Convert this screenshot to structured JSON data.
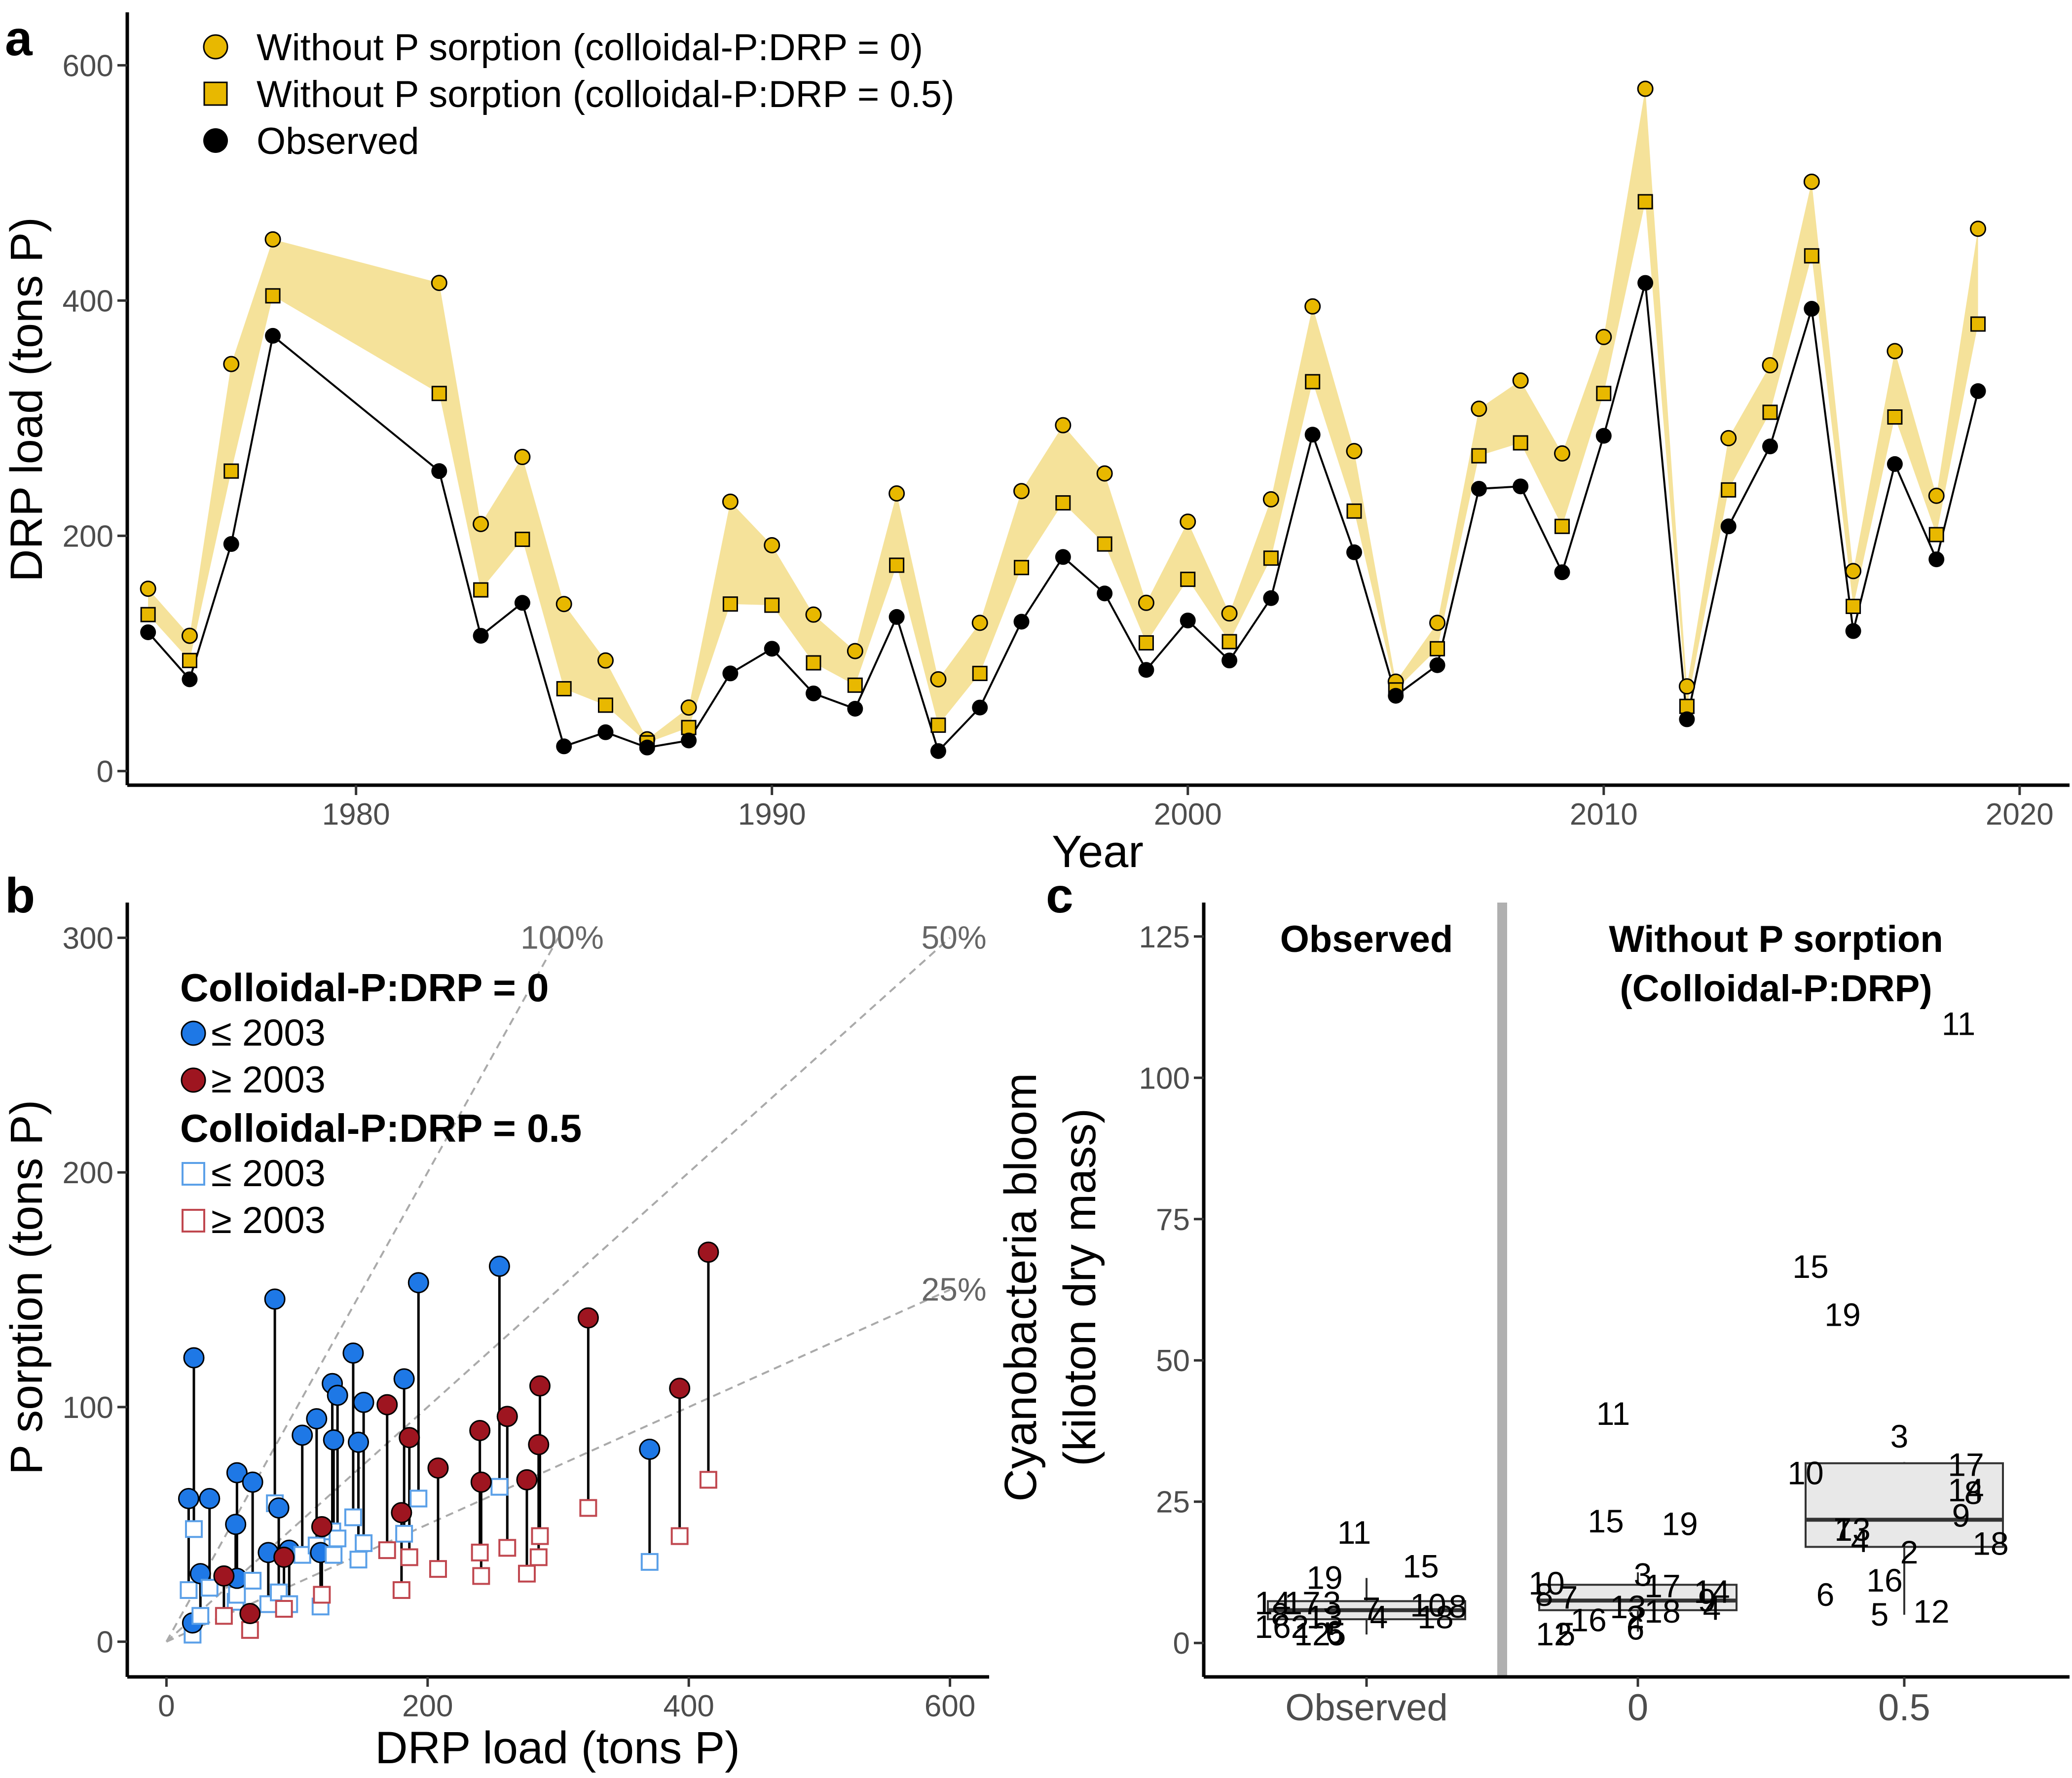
{
  "panels": {
    "a": "a",
    "b": "b",
    "c": "c"
  },
  "colors": {
    "gold": "#E8B800",
    "band": "#F5E29A",
    "observed": "#000000",
    "blue": "#1E78E6",
    "red": "#9E1520",
    "lightblue": "#5BA0E8",
    "lightred": "#C0474F",
    "guide": "#AAAAAA",
    "box_fill": "#E8E8E8",
    "divider": "#B0B0B0"
  },
  "chart_data": [
    {
      "id": "a",
      "type": "line",
      "xlabel": "Year",
      "ylabel": "DRP load (tons P)",
      "xlim": [
        1974.5,
        2021.2
      ],
      "ylim": [
        -12,
        645
      ],
      "xticks": [
        1980,
        1990,
        2000,
        2010,
        2020
      ],
      "yticks": [
        0,
        200,
        400,
        600
      ],
      "legend_position": "top-left",
      "legend": [
        {
          "marker": "circle",
          "label": "Without P sorption (colloidal-P:DRP = 0)"
        },
        {
          "marker": "square",
          "label": "Without P sorption (colloidal-P:DRP = 0.5)"
        },
        {
          "marker": "dot",
          "label": "Observed"
        }
      ],
      "x": [
        1975,
        1976,
        1977,
        1978,
        1982,
        1983,
        1984,
        1985,
        1986,
        1987,
        1988,
        1989,
        1990,
        1991,
        1992,
        1993,
        1994,
        1995,
        1996,
        1997,
        1998,
        1999,
        2000,
        2001,
        2002,
        2003,
        2004,
        2005,
        2006,
        2007,
        2008,
        2009,
        2010,
        2011,
        2012,
        2013,
        2014,
        2015,
        2016,
        2017,
        2018,
        2019
      ],
      "series": [
        {
          "name": "Without P sorption (colloidal-P:DRP = 0)",
          "marker": "circle",
          "values": [
            155,
            115,
            346,
            452,
            415,
            210,
            267,
            142,
            94,
            27,
            54,
            229,
            192,
            133,
            102,
            236,
            78,
            126,
            238,
            294,
            253,
            143,
            212,
            134,
            231,
            395,
            272,
            76,
            126,
            308,
            332,
            270,
            369,
            580,
            72,
            283,
            345,
            501,
            170,
            357,
            234,
            461
          ]
        },
        {
          "name": "Without P sorption (colloidal-P:DRP = 0.5)",
          "marker": "square",
          "values": [
            133,
            94,
            255,
            404,
            321,
            154,
            197,
            70,
            56,
            24,
            37,
            142,
            141,
            92,
            73,
            175,
            39,
            83,
            173,
            228,
            193,
            109,
            163,
            110,
            181,
            331,
            221,
            69,
            104,
            268,
            279,
            208,
            321,
            484,
            55,
            239,
            305,
            438,
            140,
            301,
            201,
            380
          ]
        },
        {
          "name": "Observed",
          "marker": "dot",
          "values": [
            118,
            78,
            193,
            370,
            255,
            115,
            143,
            21,
            33,
            20,
            26,
            83,
            104,
            66,
            53,
            131,
            17,
            54,
            127,
            182,
            151,
            86,
            128,
            94,
            147,
            286,
            186,
            64,
            90,
            240,
            242,
            169,
            285,
            415,
            44,
            208,
            276,
            393,
            119,
            261,
            180,
            323
          ]
        }
      ]
    },
    {
      "id": "b",
      "type": "scatter",
      "xlabel": "DRP load (tons P)",
      "ylabel": "P sorption (tons P)",
      "xlim": [
        -30,
        630
      ],
      "ylim": [
        -15,
        315
      ],
      "xticks": [
        0,
        200,
        400,
        600
      ],
      "yticks": [
        0,
        100,
        200,
        300
      ],
      "legend_position": "top-left",
      "legend": {
        "group1_title": "Colloidal-P:DRP = 0",
        "group1_items": [
          "≤ 2003",
          "≥ 2003"
        ],
        "group2_title": "Colloidal-P:DRP = 0.5",
        "group2_items": [
          "≤ 2003",
          "≥ 2003"
        ]
      },
      "reference_lines": [
        {
          "label": "100%",
          "slope": 1.0
        },
        {
          "label": "50%",
          "slope": 0.5
        },
        {
          "label": "25%",
          "slope": 0.25
        }
      ],
      "points": [
        {
          "x": 17,
          "y0": 61,
          "y05": 22,
          "period": "early"
        },
        {
          "x": 21,
          "y0": 121,
          "y05": 48,
          "period": "early"
        },
        {
          "x": 20,
          "y0": 8,
          "y05": 3,
          "period": "early"
        },
        {
          "x": 26,
          "y0": 29,
          "y05": 11,
          "period": "early"
        },
        {
          "x": 33,
          "y0": 61,
          "y05": 23,
          "period": "early"
        },
        {
          "x": 53,
          "y0": 50,
          "y05": 17,
          "period": "early"
        },
        {
          "x": 54,
          "y0": 72,
          "y05": 26,
          "period": "early"
        },
        {
          "x": 54,
          "y0": 27,
          "y05": 20,
          "period": "early"
        },
        {
          "x": 66,
          "y0": 68,
          "y05": 26,
          "period": "early"
        },
        {
          "x": 78,
          "y0": 38,
          "y05": 16,
          "period": "early"
        },
        {
          "x": 83,
          "y0": 146,
          "y05": 59,
          "period": "early"
        },
        {
          "x": 86,
          "y0": 57,
          "y05": 21,
          "period": "early"
        },
        {
          "x": 94,
          "y0": 39,
          "y05": 16,
          "period": "early"
        },
        {
          "x": 104,
          "y0": 88,
          "y05": 37,
          "period": "early"
        },
        {
          "x": 115,
          "y0": 95,
          "y05": 41,
          "period": "early"
        },
        {
          "x": 118,
          "y0": 38,
          "y05": 15,
          "period": "early"
        },
        {
          "x": 127,
          "y0": 110,
          "y05": 47,
          "period": "early"
        },
        {
          "x": 128,
          "y0": 86,
          "y05": 37,
          "period": "early"
        },
        {
          "x": 131,
          "y0": 105,
          "y05": 44,
          "period": "early"
        },
        {
          "x": 143,
          "y0": 123,
          "y05": 53,
          "period": "early"
        },
        {
          "x": 147,
          "y0": 85,
          "y05": 35,
          "period": "early"
        },
        {
          "x": 151,
          "y0": 102,
          "y05": 42,
          "period": "early"
        },
        {
          "x": 182,
          "y0": 112,
          "y05": 46,
          "period": "early"
        },
        {
          "x": 193,
          "y0": 153,
          "y05": 61,
          "period": "early"
        },
        {
          "x": 255,
          "y0": 160,
          "y05": 66,
          "period": "early"
        },
        {
          "x": 370,
          "y0": 82,
          "y05": 34,
          "period": "early"
        },
        {
          "x": 44,
          "y0": 28,
          "y05": 11,
          "period": "late"
        },
        {
          "x": 64,
          "y0": 12,
          "y05": 5,
          "period": "late"
        },
        {
          "x": 90,
          "y0": 36,
          "y05": 14,
          "period": "late"
        },
        {
          "x": 119,
          "y0": 49,
          "y05": 20,
          "period": "late"
        },
        {
          "x": 169,
          "y0": 101,
          "y05": 39,
          "period": "late"
        },
        {
          "x": 180,
          "y0": 55,
          "y05": 22,
          "period": "late"
        },
        {
          "x": 186,
          "y0": 87,
          "y05": 36,
          "period": "late"
        },
        {
          "x": 208,
          "y0": 74,
          "y05": 31,
          "period": "late"
        },
        {
          "x": 240,
          "y0": 90,
          "y05": 38,
          "period": "late"
        },
        {
          "x": 241,
          "y0": 68,
          "y05": 28,
          "period": "late"
        },
        {
          "x": 261,
          "y0": 96,
          "y05": 40,
          "period": "late"
        },
        {
          "x": 276,
          "y0": 69,
          "y05": 29,
          "period": "late"
        },
        {
          "x": 285,
          "y0": 84,
          "y05": 36,
          "period": "late"
        },
        {
          "x": 286,
          "y0": 109,
          "y05": 45,
          "period": "late"
        },
        {
          "x": 323,
          "y0": 138,
          "y05": 57,
          "period": "late"
        },
        {
          "x": 393,
          "y0": 108,
          "y05": 45,
          "period": "late"
        },
        {
          "x": 415,
          "y0": 166,
          "y05": 69,
          "period": "late"
        }
      ]
    },
    {
      "id": "c",
      "type": "box",
      "ylabel_line1": "Cyanobacteria bloom",
      "ylabel_line2": "(kiloton dry mass)",
      "ylim": [
        -6,
        131
      ],
      "yticks": [
        0,
        25,
        50,
        75,
        100,
        125
      ],
      "strip_left": "Observed",
      "strip_right_line1": "Without P sorption",
      "strip_right_line2": "(Colloidal-P:DRP)",
      "categories": [
        "Observed",
        "0",
        "0.5"
      ],
      "boxes": [
        {
          "category": "Observed",
          "whisker_low": 1.5,
          "q1": 4.2,
          "median": 5.8,
          "q3": 7.4,
          "whisker_high": 11.5
        },
        {
          "category": "0",
          "whisker_low": 2.0,
          "q1": 5.8,
          "median": 7.5,
          "q3": 10.3,
          "whisker_high": 12.5
        },
        {
          "category": "0.5",
          "whisker_low": 5.0,
          "q1": 17.0,
          "median": 21.8,
          "q3": 31.8,
          "whisker_high": 32.0
        }
      ],
      "year_labels": [
        {
          "category": "Observed",
          "dx": -0.05,
          "value": 19.5,
          "label": "11"
        },
        {
          "category": "Observed",
          "dx": -0.17,
          "value": 11.5,
          "label": "19"
        },
        {
          "category": "Observed",
          "dx": 0.22,
          "value": 13.5,
          "label": "15"
        },
        {
          "category": "Observed",
          "dx": -0.38,
          "value": 7.0,
          "label": "14"
        },
        {
          "category": "Observed",
          "dx": -0.26,
          "value": 7.0,
          "label": "17"
        },
        {
          "category": "Observed",
          "dx": -0.14,
          "value": 7.0,
          "label": "3"
        },
        {
          "category": "Observed",
          "dx": 0.02,
          "value": 6.0,
          "label": "7"
        },
        {
          "category": "Observed",
          "dx": 0.25,
          "value": 6.6,
          "label": "10"
        },
        {
          "category": "Observed",
          "dx": 0.37,
          "value": 6.4,
          "label": "8"
        },
        {
          "category": "Observed",
          "dx": -0.35,
          "value": 5.0,
          "label": "8"
        },
        {
          "category": "Observed",
          "dx": -0.17,
          "value": 4.5,
          "label": "13"
        },
        {
          "category": "Observed",
          "dx": 0.05,
          "value": 4.5,
          "label": "4"
        },
        {
          "category": "Observed",
          "dx": 0.28,
          "value": 4.5,
          "label": "18"
        },
        {
          "category": "Observed",
          "dx": -0.38,
          "value": 2.8,
          "label": "16"
        },
        {
          "category": "Observed",
          "dx": -0.27,
          "value": 2.8,
          "label": "2"
        },
        {
          "category": "Observed",
          "dx": -0.22,
          "value": 1.5,
          "label": "12"
        },
        {
          "category": "Observed",
          "dx": -0.12,
          "value": 1.5,
          "label": "5"
        },
        {
          "category": "Observed",
          "dx": -0.13,
          "value": 1.8,
          "label": "6"
        },
        {
          "category": "0",
          "dx": -0.1,
          "value": 40.5,
          "label": "11"
        },
        {
          "category": "0",
          "dx": -0.13,
          "value": 21.5,
          "label": "15"
        },
        {
          "category": "0",
          "dx": 0.17,
          "value": 21.0,
          "label": "19"
        },
        {
          "category": "0",
          "dx": 0.02,
          "value": 12.0,
          "label": "3"
        },
        {
          "category": "0",
          "dx": -0.37,
          "value": 10.5,
          "label": "10"
        },
        {
          "category": "0",
          "dx": 0.1,
          "value": 10.0,
          "label": "17"
        },
        {
          "category": "0",
          "dx": 0.3,
          "value": 9.0,
          "label": "14"
        },
        {
          "category": "0",
          "dx": -0.38,
          "value": 8.5,
          "label": "8"
        },
        {
          "category": "0",
          "dx": -0.28,
          "value": 8.0,
          "label": "7"
        },
        {
          "category": "0",
          "dx": 0.28,
          "value": 7.5,
          "label": "9"
        },
        {
          "category": "0",
          "dx": -0.04,
          "value": 6.3,
          "label": "13"
        },
        {
          "category": "0",
          "dx": 0.1,
          "value": 5.5,
          "label": "18"
        },
        {
          "category": "0",
          "dx": 0.3,
          "value": 6.0,
          "label": "4"
        },
        {
          "category": "0",
          "dx": -0.2,
          "value": 4.0,
          "label": "16"
        },
        {
          "category": "0",
          "dx": -0.01,
          "value": 4.5,
          "label": "2"
        },
        {
          "category": "0",
          "dx": -0.34,
          "value": 1.5,
          "label": "12"
        },
        {
          "category": "0",
          "dx": -0.29,
          "value": 1.5,
          "label": "5"
        },
        {
          "category": "0",
          "dx": -0.01,
          "value": 2.5,
          "label": "6"
        },
        {
          "category": "0.5",
          "dx": 0.22,
          "value": 109.5,
          "label": "11"
        },
        {
          "category": "0.5",
          "dx": -0.38,
          "value": 66.5,
          "label": "15"
        },
        {
          "category": "0.5",
          "dx": -0.25,
          "value": 58.0,
          "label": "19"
        },
        {
          "category": "0.5",
          "dx": -0.02,
          "value": 36.5,
          "label": "3"
        },
        {
          "category": "0.5",
          "dx": 0.25,
          "value": 31.5,
          "label": "17"
        },
        {
          "category": "0.5",
          "dx": -0.4,
          "value": 30.0,
          "label": "10"
        },
        {
          "category": "0.5",
          "dx": 0.25,
          "value": 27.0,
          "label": "14"
        },
        {
          "category": "0.5",
          "dx": 0.28,
          "value": 26.5,
          "label": "8"
        },
        {
          "category": "0.5",
          "dx": 0.23,
          "value": 22.5,
          "label": "9"
        },
        {
          "category": "0.5",
          "dx": -0.25,
          "value": 20.0,
          "label": "7"
        },
        {
          "category": "0.5",
          "dx": -0.21,
          "value": 20.0,
          "label": "13"
        },
        {
          "category": "0.5",
          "dx": -0.18,
          "value": 18.0,
          "label": "4"
        },
        {
          "category": "0.5",
          "dx": 0.35,
          "value": 17.5,
          "label": "18"
        },
        {
          "category": "0.5",
          "dx": 0.02,
          "value": 16.0,
          "label": "2"
        },
        {
          "category": "0.5",
          "dx": -0.08,
          "value": 11.0,
          "label": "16"
        },
        {
          "category": "0.5",
          "dx": -0.32,
          "value": 8.5,
          "label": "6"
        },
        {
          "category": "0.5",
          "dx": -0.1,
          "value": 5.0,
          "label": "5"
        },
        {
          "category": "0.5",
          "dx": 0.11,
          "value": 5.5,
          "label": "12"
        }
      ]
    }
  ]
}
